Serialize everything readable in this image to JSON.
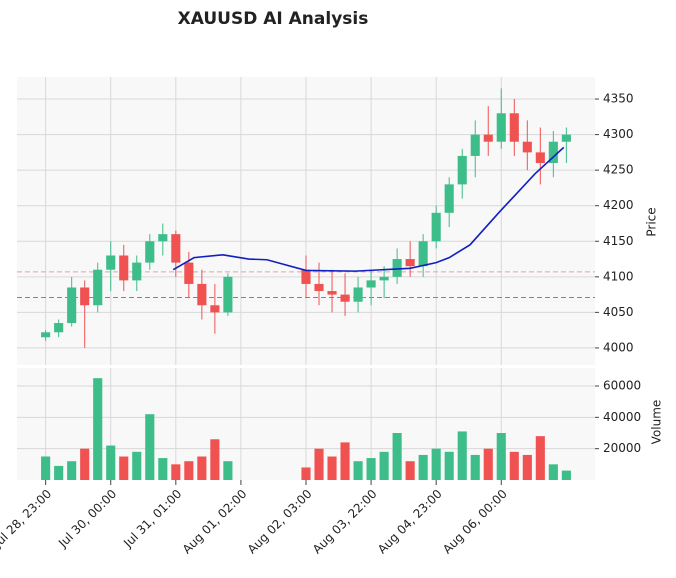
{
  "chart_data": {
    "type": "candlestick",
    "title": "XAUUSD AI Analysis",
    "y_label": "Price",
    "volume_label": "Volume",
    "up_color": "#3dbd8a",
    "down_color": "#f05252",
    "grid": true,
    "xlim": [
      -11,
      211
    ],
    "xticks": [
      {
        "value": 0,
        "label": "Jul 28, 23:00"
      },
      {
        "value": 25,
        "label": "Jul 30, 00:00"
      },
      {
        "value": 50,
        "label": "Jul 31, 01:00"
      },
      {
        "value": 75,
        "label": "Aug 01, 02:00"
      },
      {
        "value": 100,
        "label": "Aug 02, 03:00"
      },
      {
        "value": 125,
        "label": "Aug 03, 22:00"
      },
      {
        "value": 150,
        "label": "Aug 04, 23:00"
      },
      {
        "value": 175,
        "label": "Aug 06, 00:00"
      }
    ],
    "ylim": [
      3976,
      4381
    ],
    "yticks": [
      4000,
      4050,
      4100,
      4150,
      4200,
      4250,
      4300,
      4350
    ],
    "volume_ylim": [
      0,
      71500
    ],
    "volume_yticks": [
      20000,
      40000,
      60000
    ],
    "candles": {
      "x": [
        0,
        5,
        10,
        15,
        20,
        25,
        30,
        35,
        40,
        45,
        50,
        55,
        60,
        65,
        70,
        100,
        105,
        110,
        115,
        120,
        125,
        130,
        135,
        140,
        145,
        150,
        155,
        160,
        165,
        170,
        175,
        180,
        185,
        190,
        195,
        200
      ],
      "open": [
        4015,
        4022,
        4035,
        4085,
        4060,
        4110,
        4130,
        4095,
        4120,
        4150,
        4160,
        4120,
        4090,
        4060,
        4050,
        4110,
        4090,
        4080,
        4075,
        4065,
        4085,
        4095,
        4100,
        4125,
        4115,
        4150,
        4190,
        4230,
        4270,
        4300,
        4290,
        4330,
        4290,
        4275,
        4260,
        4290
      ],
      "high": [
        4025,
        4040,
        4100,
        4095,
        4120,
        4150,
        4145,
        4130,
        4160,
        4175,
        4165,
        4135,
        4110,
        4090,
        4105,
        4130,
        4120,
        4110,
        4105,
        4100,
        4110,
        4115,
        4140,
        4150,
        4160,
        4200,
        4240,
        4280,
        4320,
        4340,
        4365,
        4350,
        4320,
        4310,
        4305,
        4310
      ],
      "low": [
        4010,
        4015,
        4030,
        4000,
        4050,
        4080,
        4080,
        4080,
        4110,
        4130,
        4100,
        4070,
        4040,
        4020,
        4045,
        4070,
        4060,
        4050,
        4045,
        4050,
        4060,
        4070,
        4090,
        4100,
        4100,
        4140,
        4170,
        4210,
        4240,
        4270,
        4280,
        4270,
        4250,
        4230,
        4240,
        4260
      ],
      "close": [
        4022,
        4035,
        4085,
        4060,
        4110,
        4130,
        4095,
        4120,
        4150,
        4160,
        4120,
        4090,
        4060,
        4050,
        4100,
        4090,
        4080,
        4075,
        4065,
        4085,
        4095,
        4100,
        4125,
        4115,
        4150,
        4190,
        4230,
        4270,
        4300,
        4290,
        4330,
        4290,
        4275,
        4260,
        4290,
        4300
      ],
      "volume": [
        15000,
        9000,
        12000,
        20000,
        65000,
        22000,
        15000,
        18000,
        42000,
        14000,
        10000,
        12000,
        15000,
        26000,
        12000,
        8000,
        20000,
        15000,
        24000,
        12000,
        14000,
        18000,
        30000,
        12000,
        16000,
        20000,
        18000,
        31000,
        16000,
        20000,
        30000,
        18000,
        16000,
        28000,
        10000,
        6000
      ]
    },
    "moving_average": {
      "color": "#1020c0",
      "x": [
        49,
        57,
        68,
        78,
        85,
        100,
        119,
        140,
        150,
        155,
        163,
        174,
        188,
        199
      ],
      "values": [
        4110,
        4127,
        4131,
        4125,
        4124,
        4109,
        4108,
        4112,
        4120,
        4127,
        4145,
        4190,
        4245,
        4282
      ]
    },
    "hlines": [
      {
        "value": 4107,
        "color": "#e8a0a8"
      },
      {
        "value": 4071,
        "color": "#7a9a3a"
      }
    ]
  }
}
